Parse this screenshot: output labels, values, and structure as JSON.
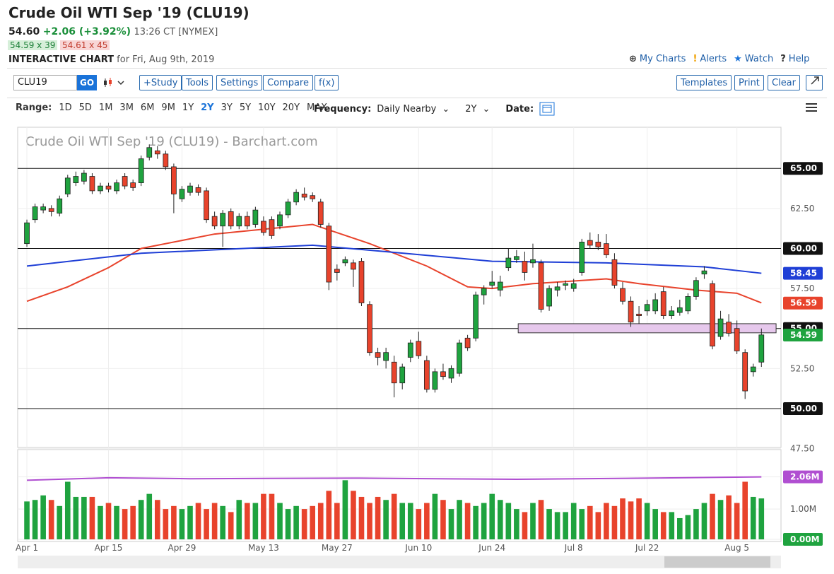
{
  "header": {
    "title": "Crude Oil WTI Sep '19 (CLU19)",
    "price": "54.60",
    "change": "+2.06 (+3.92%)",
    "time": "13:26 CT [NYMEX]",
    "bid": "54.59 x 39",
    "ask": "54.61 x 45",
    "chart_label": "INTERACTIVE CHART",
    "date": "for Fri, Aug 9th, 2019",
    "links": [
      "My Charts",
      "Alerts",
      "Watch",
      "Help"
    ]
  },
  "toolbar": {
    "symbol": "CLU19",
    "go": "GO",
    "buttons": [
      "+Study",
      "Tools",
      "Settings",
      "Compare",
      "f(x)"
    ],
    "right_buttons": [
      "Templates",
      "Print",
      "Clear"
    ]
  },
  "range_bar": {
    "range_label": "Range:",
    "ranges": [
      "1D",
      "5D",
      "1M",
      "3M",
      "6M",
      "9M",
      "1Y",
      "2Y",
      "3Y",
      "5Y",
      "10Y",
      "20Y",
      "MAX"
    ],
    "selected_range": 7,
    "frequency_label": "Frequency:",
    "frequency": "Daily Nearby",
    "period": "2Y",
    "date_label": "Date:"
  },
  "chart_data": {
    "type": "candlestick",
    "title": "Crude Oil WTI Sep '19 (CLU19) - Barchart.com",
    "up_color": "#1fa33f",
    "down_color": "#e8432c",
    "candles": [
      [
        60.3,
        61.8,
        60.1,
        61.6
      ],
      [
        61.8,
        62.8,
        61.6,
        62.6
      ],
      [
        62.4,
        62.8,
        62.2,
        62.6
      ],
      [
        62.5,
        62.7,
        62.0,
        62.3
      ],
      [
        62.2,
        63.3,
        62.0,
        63.1
      ],
      [
        63.4,
        64.6,
        63.2,
        64.4
      ],
      [
        64.1,
        64.8,
        63.9,
        64.5
      ],
      [
        64.2,
        64.9,
        64.0,
        64.7
      ],
      [
        64.5,
        64.7,
        63.4,
        63.6
      ],
      [
        63.6,
        64.1,
        63.4,
        63.9
      ],
      [
        63.9,
        64.1,
        63.5,
        63.7
      ],
      [
        63.6,
        64.3,
        63.4,
        64.1
      ],
      [
        64.5,
        64.7,
        63.7,
        63.9
      ],
      [
        64.1,
        64.3,
        63.6,
        63.8
      ],
      [
        64.1,
        65.8,
        63.9,
        65.6
      ],
      [
        65.7,
        66.5,
        65.5,
        66.3
      ],
      [
        66.1,
        66.4,
        65.6,
        65.9
      ],
      [
        65.9,
        66.1,
        64.9,
        65.1
      ],
      [
        65.1,
        65.3,
        62.2,
        63.4
      ],
      [
        63.1,
        63.9,
        62.9,
        63.7
      ],
      [
        63.5,
        64.1,
        63.3,
        63.9
      ],
      [
        63.8,
        64.0,
        63.3,
        63.5
      ],
      [
        63.6,
        63.8,
        61.6,
        61.8
      ],
      [
        62.0,
        62.3,
        61.2,
        61.4
      ],
      [
        61.4,
        62.4,
        60.1,
        62.2
      ],
      [
        62.3,
        62.5,
        61.2,
        61.4
      ],
      [
        61.4,
        62.2,
        61.2,
        62.0
      ],
      [
        62.0,
        62.3,
        61.2,
        61.4
      ],
      [
        61.5,
        62.6,
        61.3,
        62.4
      ],
      [
        61.7,
        62.0,
        60.8,
        61.0
      ],
      [
        61.8,
        62.0,
        60.6,
        60.8
      ],
      [
        61.4,
        62.3,
        61.2,
        62.1
      ],
      [
        62.1,
        63.1,
        61.9,
        62.9
      ],
      [
        62.9,
        63.7,
        62.7,
        63.5
      ],
      [
        63.4,
        63.8,
        63.0,
        63.2
      ],
      [
        63.3,
        63.5,
        62.9,
        63.1
      ],
      [
        62.9,
        63.1,
        61.3,
        61.5
      ],
      [
        61.4,
        61.6,
        57.4,
        57.9
      ],
      [
        58.7,
        59.0,
        58.0,
        58.5
      ],
      [
        59.1,
        59.5,
        58.9,
        59.3
      ],
      [
        59.1,
        59.3,
        57.6,
        58.7
      ],
      [
        59.2,
        59.4,
        56.4,
        56.6
      ],
      [
        56.5,
        56.7,
        53.3,
        53.5
      ],
      [
        53.5,
        53.8,
        52.7,
        53.2
      ],
      [
        53.0,
        53.8,
        52.5,
        53.5
      ],
      [
        52.9,
        53.3,
        50.7,
        51.6
      ],
      [
        51.6,
        52.8,
        51.2,
        52.6
      ],
      [
        53.2,
        54.3,
        52.9,
        54.1
      ],
      [
        54.2,
        54.8,
        53.1,
        53.3
      ],
      [
        53.0,
        53.3,
        51.0,
        51.2
      ],
      [
        51.2,
        52.5,
        51.0,
        52.3
      ],
      [
        52.3,
        52.8,
        51.8,
        52.0
      ],
      [
        51.9,
        52.7,
        51.6,
        52.5
      ],
      [
        52.2,
        54.3,
        52.0,
        54.1
      ],
      [
        54.4,
        54.6,
        53.6,
        53.8
      ],
      [
        54.4,
        57.3,
        54.2,
        57.1
      ],
      [
        57.1,
        57.7,
        56.5,
        57.5
      ],
      [
        57.7,
        58.6,
        57.5,
        57.9
      ],
      [
        57.4,
        58.3,
        57.0,
        57.9
      ],
      [
        58.8,
        60.0,
        58.6,
        59.4
      ],
      [
        59.3,
        59.9,
        59.1,
        59.5
      ],
      [
        59.2,
        59.8,
        58.0,
        58.5
      ],
      [
        59.1,
        60.3,
        58.8,
        59.3
      ],
      [
        59.1,
        59.3,
        56.0,
        56.2
      ],
      [
        56.4,
        57.7,
        56.1,
        57.5
      ],
      [
        57.4,
        57.9,
        57.0,
        57.6
      ],
      [
        57.7,
        58.0,
        57.4,
        57.8
      ],
      [
        57.5,
        58.1,
        57.3,
        57.8
      ],
      [
        58.5,
        60.6,
        58.3,
        60.4
      ],
      [
        60.5,
        61.0,
        60.0,
        60.2
      ],
      [
        60.4,
        60.9,
        59.9,
        60.1
      ],
      [
        60.3,
        60.9,
        59.4,
        59.6
      ],
      [
        59.3,
        59.7,
        57.5,
        57.7
      ],
      [
        57.5,
        57.9,
        56.5,
        56.7
      ],
      [
        56.7,
        57.0,
        55.1,
        55.4
      ],
      [
        55.9,
        56.4,
        55.3,
        55.8
      ],
      [
        56.1,
        56.8,
        55.8,
        56.5
      ],
      [
        56.1,
        57.2,
        55.9,
        56.8
      ],
      [
        57.3,
        57.6,
        55.6,
        55.8
      ],
      [
        55.8,
        56.4,
        55.6,
        56.1
      ],
      [
        56.0,
        56.8,
        55.8,
        56.3
      ],
      [
        56.1,
        57.2,
        55.9,
        57.0
      ],
      [
        57.0,
        58.2,
        56.8,
        58.0
      ],
      [
        58.4,
        58.9,
        58.1,
        58.6
      ],
      [
        57.8,
        58.0,
        53.7,
        53.9
      ],
      [
        54.5,
        56.1,
        54.3,
        55.6
      ],
      [
        55.4,
        55.9,
        54.5,
        54.7
      ],
      [
        55.0,
        55.5,
        53.4,
        53.6
      ],
      [
        53.5,
        53.7,
        50.6,
        51.1
      ],
      [
        52.3,
        52.8,
        52.0,
        52.6
      ],
      [
        52.9,
        55.0,
        52.6,
        54.6
      ]
    ],
    "xlim": [
      -1.13,
      92.4
    ],
    "xticks": [
      {
        "value": 0,
        "label": "Apr 1"
      },
      {
        "value": 10,
        "label": "Apr 15"
      },
      {
        "value": 19,
        "label": "Apr 29"
      },
      {
        "value": 29,
        "label": "May 13"
      },
      {
        "value": 38,
        "label": "May 27"
      },
      {
        "value": 48,
        "label": "Jun 10"
      },
      {
        "value": 57,
        "label": "Jun 24"
      },
      {
        "value": 67,
        "label": "Jul 8"
      },
      {
        "value": 76,
        "label": "Jul 22"
      },
      {
        "value": 87,
        "label": "Aug 5"
      }
    ],
    "ylim": [
      47.57,
      67.57
    ],
    "yticks": [
      {
        "value": 65,
        "label": "65.00"
      },
      {
        "value": 62.5,
        "label": "62.50"
      },
      {
        "value": 60,
        "label": "60.00"
      },
      {
        "value": 57.5,
        "label": "57.50"
      },
      {
        "value": 55,
        "label": "55.00"
      },
      {
        "value": 52.5,
        "label": "52.50"
      },
      {
        "value": 50,
        "label": "50.00"
      },
      {
        "value": 47.5,
        "label": "47.50"
      }
    ],
    "hlines": [
      65,
      60,
      55,
      50
    ],
    "zone": {
      "x": [
        60.2,
        91.8
      ],
      "y": [
        54.73,
        55.3
      ],
      "color": "#e6c8ec"
    },
    "series": [
      {
        "color": "#e8432c",
        "x": [
          0,
          5,
          10,
          14,
          23,
          35,
          42,
          49,
          54,
          57,
          62,
          71,
          75,
          82,
          87,
          90
        ],
        "values": [
          56.7,
          57.6,
          58.8,
          60.0,
          60.9,
          61.5,
          60.3,
          58.9,
          57.6,
          57.5,
          57.8,
          58.1,
          57.8,
          57.4,
          57.2,
          56.6
        ]
      },
      {
        "color": "#1f3fd6",
        "x": [
          0,
          14,
          35,
          44,
          57,
          71,
          83,
          90
        ],
        "values": [
          58.9,
          59.7,
          60.2,
          59.8,
          59.2,
          59.1,
          58.85,
          58.45
        ]
      }
    ],
    "last_markers": [
      {
        "value": 58.45,
        "color": "#1f3fd6"
      },
      {
        "value": 56.59,
        "color": "#e8432c"
      },
      {
        "value": 54.59,
        "color": "#1fa33f"
      }
    ],
    "volume": {
      "values": [
        1.25,
        1.3,
        1.45,
        1.3,
        1.1,
        1.9,
        1.4,
        1.4,
        1.4,
        1.1,
        1.2,
        1.1,
        1.0,
        1.1,
        1.3,
        1.5,
        1.3,
        1.0,
        1.1,
        1.0,
        1.1,
        1.2,
        1.0,
        1.2,
        1.1,
        0.9,
        1.3,
        1.2,
        1.2,
        1.5,
        1.5,
        1.2,
        1.0,
        1.1,
        1.0,
        1.1,
        1.2,
        1.6,
        1.2,
        1.95,
        1.6,
        1.4,
        1.2,
        1.4,
        1.3,
        1.5,
        1.2,
        1.2,
        1.0,
        1.2,
        1.5,
        1.3,
        1.0,
        1.3,
        1.2,
        1.1,
        1.2,
        1.5,
        1.3,
        1.2,
        1.0,
        0.9,
        1.2,
        1.3,
        1.0,
        0.9,
        0.9,
        1.2,
        1.0,
        1.1,
        0.9,
        1.2,
        1.1,
        1.35,
        1.25,
        1.35,
        1.2,
        1.0,
        0.9,
        0.9,
        0.7,
        0.8,
        1.0,
        1.2,
        1.5,
        1.3,
        1.45,
        1.2,
        1.9,
        1.4,
        1.35
      ],
      "ylim": [
        -0.07,
        2.96
      ],
      "yticks": [
        {
          "value": 2.06,
          "label": "2.06M",
          "color": "#b04fd1"
        },
        {
          "value": 1,
          "label": "1.00M"
        },
        {
          "value": 0,
          "label": "0.00M",
          "color": "#1fa33f"
        }
      ],
      "ma": {
        "color": "#b04fd1",
        "x": [
          0,
          10,
          20,
          40,
          60,
          80,
          90
        ],
        "values": [
          1.95,
          2.03,
          2.0,
          2.02,
          1.98,
          2.03,
          2.06
        ]
      }
    }
  }
}
